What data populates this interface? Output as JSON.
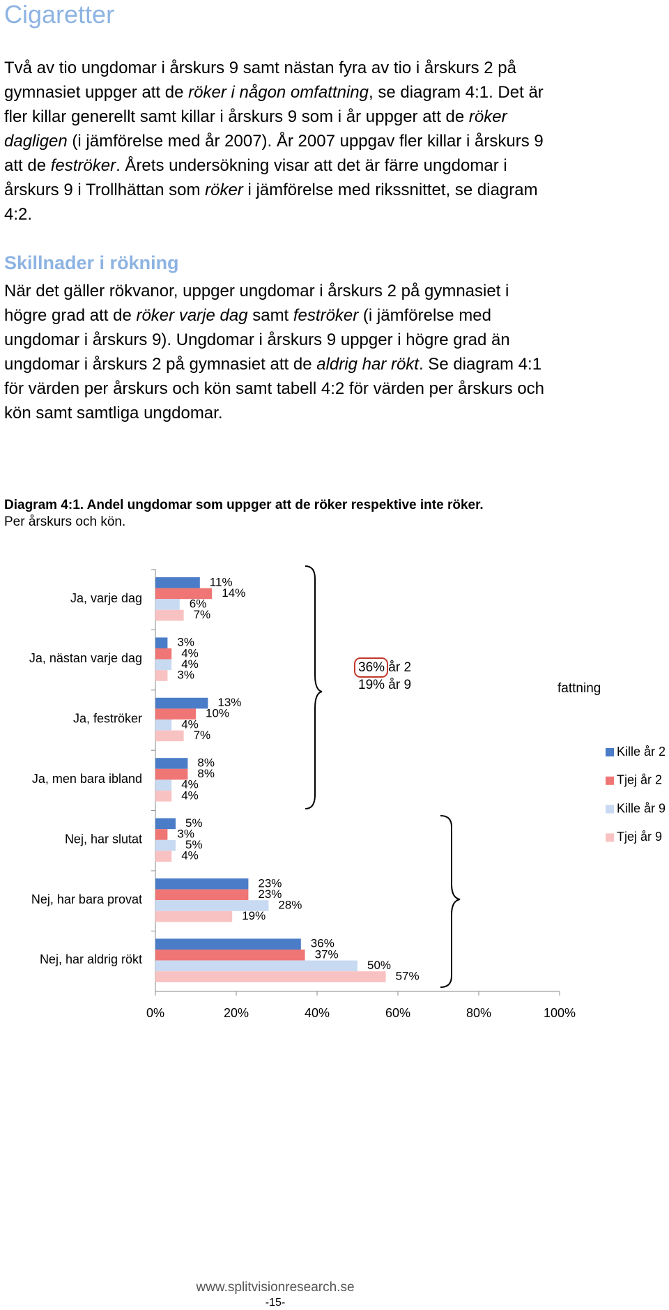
{
  "title": "Cigaretter",
  "paragraphs": [
    [
      "Två av tio ungdomar i årskurs 9 samt nästan fyra av tio i årskurs 2 på gymnasiet uppger att de ",
      {
        "text": "röker i någon omfattning",
        "style": "italic"
      },
      ", se diagram 4:1. Det är fler killar generellt samt killar i årskurs 9 som i år uppger att de ",
      {
        "text": "röker dagligen",
        "style": "italic"
      },
      " (i jämförelse med år 2007). År 2007 uppgav fler killar i årskurs 9 att de ",
      {
        "text": "feströker",
        "style": "italic"
      },
      ". Årets undersökning visar att det är färre ungdomar i årskurs 9 i Trollhättan som ",
      {
        "text": "röker",
        "style": "italic"
      },
      " i jämförelse med rikssnittet, se diagram 4:2."
    ],
    [
      "När det gäller rökvanor, uppger ungdomar i årskurs 2 på gymnasiet i högre grad att de ",
      {
        "text": "röker varje dag",
        "style": "italic"
      },
      " samt ",
      {
        "text": "feströker",
        "style": "italic"
      },
      " (i jämförelse med ungdomar i årskurs 9). Ungdomar i årskurs 9 uppger i högre grad än ungdomar i årskurs 2 på gymnasiet att de ",
      {
        "text": "aldrig har rökt",
        "style": "italic"
      },
      ". Se diagram 4:1 för värden per årskurs och kön samt tabell 4:2 för värden per årskurs och kön samt samtliga ungdomar."
    ]
  ],
  "subheading": "Skillnader i rökning",
  "caption": {
    "title": "Diagram 4:1. Andel ungdomar som uppger att de röker respektive inte röker.",
    "subtitle": "Per årskurs och kön."
  },
  "chart_data": {
    "type": "bar",
    "orientation": "horizontal",
    "categories": [
      "Ja, varje dag",
      "Ja, nästan varje dag",
      "Ja, feströker",
      "Ja, men bara ibland",
      "Nej, har slutat",
      "Nej, har bara provat",
      "Nej, har aldrig rökt"
    ],
    "series": [
      {
        "name": "Kille år 2",
        "color": "#4a7cc7",
        "values": [
          11,
          3,
          13,
          8,
          5,
          23,
          36
        ],
        "value_labels": [
          "11%",
          "3%",
          "13%",
          "8%",
          "5%",
          "23%",
          "36%"
        ]
      },
      {
        "name": "Tjej år 2",
        "color": "#f07575",
        "values": [
          14,
          4,
          10,
          8,
          3,
          23,
          37
        ],
        "value_labels": [
          "14%",
          "4%",
          "10%",
          "8%",
          "3%",
          "23%",
          "37%"
        ]
      },
      {
        "name": "Kille år 9",
        "color": "#c8daf2",
        "values": [
          6,
          4,
          4,
          4,
          5,
          28,
          50
        ],
        "value_labels": [
          "6%",
          "4%",
          "4%",
          "4%",
          "5%",
          "28%",
          "50%"
        ]
      },
      {
        "name": "Tjej år 9",
        "color": "#f9c2c2",
        "values": [
          7,
          3,
          7,
          4,
          4,
          19,
          57
        ],
        "value_labels": [
          "7%",
          "3%",
          "7%",
          "4%",
          "4%",
          "19%",
          "57%"
        ]
      }
    ],
    "xlim": [
      0,
      100
    ],
    "xticks": [
      {
        "value": 0,
        "label": "0%"
      },
      {
        "value": 20,
        "label": "20%"
      },
      {
        "value": 40,
        "label": "40%"
      },
      {
        "value": 60,
        "label": "60%"
      },
      {
        "value": 80,
        "label": "80%"
      },
      {
        "value": 100,
        "label": "100%"
      }
    ],
    "annotations": [
      "36% år 2",
      "19% år 9",
      "fattning"
    ],
    "legend": "right"
  },
  "footer": {
    "url": "www.splitvisionresearch.se",
    "page": "-15-"
  }
}
